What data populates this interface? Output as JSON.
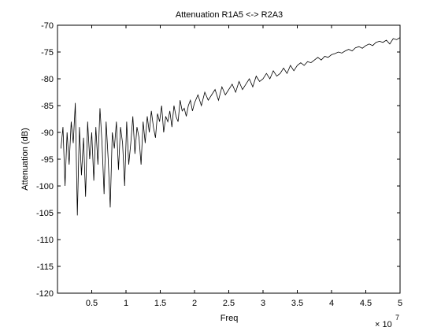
{
  "chart_data": {
    "type": "line",
    "title": "Attenuation R1A5 <-> R2A3",
    "xlabel": "Freq",
    "ylabel": "Attenuation (dB)",
    "x_exponent_label": "× 10",
    "x_exponent_power": "7",
    "x_multiplier": 10000000,
    "xlim": [
      0,
      5
    ],
    "ylim": [
      -120,
      -70
    ],
    "x_ticks": [
      "0.5",
      "1",
      "1.5",
      "2",
      "2.5",
      "3",
      "3.5",
      "4",
      "4.5",
      "5"
    ],
    "x_tick_values": [
      0.5,
      1,
      1.5,
      2,
      2.5,
      3,
      3.5,
      4,
      4.5,
      5
    ],
    "y_ticks": [
      "-70",
      "-75",
      "-80",
      "-85",
      "-90",
      "-95",
      "-100",
      "-105",
      "-110",
      "-115",
      "-120"
    ],
    "y_tick_values": [
      -70,
      -75,
      -80,
      -85,
      -90,
      -95,
      -100,
      -105,
      -110,
      -115,
      -120
    ],
    "grid": false,
    "line_color": "#000000",
    "series": [
      {
        "x": [
          0.05,
          0.08,
          0.11,
          0.14,
          0.17,
          0.2,
          0.23,
          0.26,
          0.29,
          0.32,
          0.35,
          0.38,
          0.41,
          0.44,
          0.47,
          0.5,
          0.53,
          0.56,
          0.59,
          0.62,
          0.65,
          0.68,
          0.71,
          0.74,
          0.77,
          0.8,
          0.83,
          0.86,
          0.89,
          0.92,
          0.95,
          0.98,
          1.01,
          1.04,
          1.07,
          1.1,
          1.13,
          1.16,
          1.19,
          1.22,
          1.25,
          1.28,
          1.31,
          1.34,
          1.37,
          1.4,
          1.43,
          1.46,
          1.49,
          1.52,
          1.55,
          1.58,
          1.61,
          1.64,
          1.67,
          1.7,
          1.73,
          1.76,
          1.79,
          1.82,
          1.85,
          1.88,
          1.91,
          1.94,
          1.97,
          2.0,
          2.05,
          2.1,
          2.15,
          2.2,
          2.25,
          2.3,
          2.35,
          2.4,
          2.45,
          2.5,
          2.55,
          2.6,
          2.65,
          2.7,
          2.75,
          2.8,
          2.85,
          2.9,
          2.95,
          3.0,
          3.05,
          3.1,
          3.15,
          3.2,
          3.25,
          3.3,
          3.35,
          3.4,
          3.45,
          3.5,
          3.55,
          3.6,
          3.65,
          3.7,
          3.75,
          3.8,
          3.85,
          3.9,
          3.95,
          4.0,
          4.05,
          4.1,
          4.15,
          4.2,
          4.25,
          4.3,
          4.35,
          4.4,
          4.45,
          4.5,
          4.55,
          4.6,
          4.65,
          4.7,
          4.75,
          4.8,
          4.85,
          4.9,
          4.95,
          5.0
        ],
        "y": [
          -93,
          -89,
          -100,
          -90,
          -96,
          -88,
          -92,
          -84.5,
          -105.5,
          -89,
          -98,
          -91,
          -102,
          -88,
          -95,
          -90,
          -99,
          -89,
          -96,
          -85.5,
          -92,
          -101.5,
          -88,
          -95,
          -104,
          -90,
          -93,
          -88,
          -97,
          -89,
          -92,
          -100,
          -88,
          -96,
          -92,
          -87,
          -94,
          -89,
          -91,
          -96,
          -88,
          -92,
          -87,
          -90,
          -86,
          -89,
          -91,
          -86.5,
          -88,
          -85,
          -90,
          -87,
          -88,
          -86,
          -89,
          -85,
          -87,
          -88,
          -84,
          -86,
          -85.5,
          -87,
          -85,
          -84,
          -86,
          -84.5,
          -83,
          -85,
          -82.5,
          -84,
          -83,
          -82,
          -84,
          -81.5,
          -83,
          -82,
          -81,
          -82.5,
          -80.5,
          -82,
          -81,
          -80,
          -81.5,
          -79.5,
          -80.5,
          -80,
          -79,
          -80,
          -78.5,
          -79.5,
          -79,
          -78,
          -79,
          -77.5,
          -78.5,
          -77.5,
          -77,
          -77.5,
          -76.8,
          -77,
          -76.5,
          -76,
          -76.5,
          -75.8,
          -76,
          -75.5,
          -75.3,
          -75,
          -75.2,
          -74.8,
          -74.5,
          -74.8,
          -74.2,
          -74,
          -74.3,
          -73.8,
          -73.5,
          -73.8,
          -73.2,
          -73,
          -73.2,
          -72.8,
          -73.5,
          -72.5,
          -72.7,
          -72.3
        ]
      }
    ]
  }
}
